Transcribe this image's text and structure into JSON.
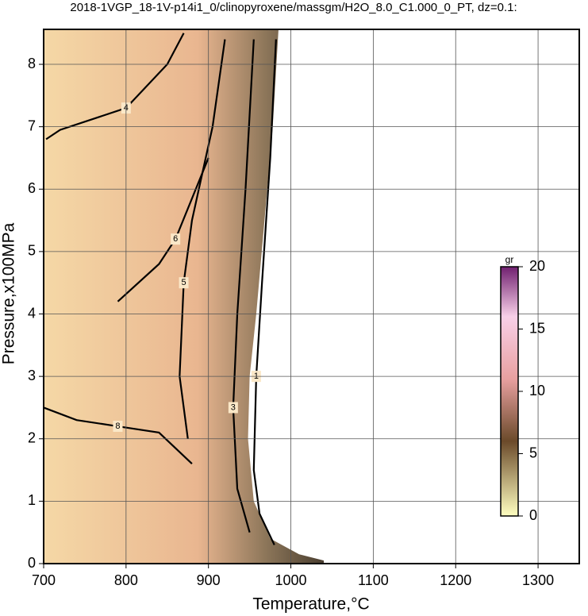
{
  "chart_data": {
    "type": "contour",
    "title": "2018-1VGP_18-1V-p14i1_0/clinopyroxene/massgm/H2O_8.0_C1.000_0_PT, dz=0.1:",
    "x_label": "Temperature,°C",
    "y_label": "Pressure,x100MPa",
    "xlim": [
      700,
      1350
    ],
    "xticks": [
      700,
      800,
      900,
      1000,
      1100,
      1200,
      1300
    ],
    "ylim": [
      0,
      8.56
    ],
    "yticks": [
      0,
      1,
      2,
      3,
      4,
      5,
      6,
      7,
      8
    ],
    "grid": true,
    "domain": {
      "x": [
        700,
        985,
        978,
        968,
        958,
        950,
        948,
        955,
        975,
        1010,
        1040,
        1040,
        700
      ],
      "y": [
        8.56,
        8.56,
        7,
        5.5,
        4,
        3,
        2,
        1,
        0.4,
        0.15,
        0.05,
        0,
        0
      ]
    },
    "contours": [
      {
        "level": 1,
        "x": [
          982,
          975,
          965,
          958,
          955,
          962,
          980
        ],
        "y": [
          8.4,
          6.5,
          4.5,
          3,
          1.5,
          0.8,
          0.3
        ]
      },
      {
        "level": 3,
        "x": [
          955,
          945,
          935,
          930,
          935,
          950
        ],
        "y": [
          8.4,
          6,
          4,
          2.5,
          1.2,
          0.5
        ]
      },
      {
        "level": 4,
        "x": [
          703,
          720,
          800,
          850,
          870
        ],
        "y": [
          6.8,
          6.95,
          7.3,
          8,
          8.5
        ]
      },
      {
        "level": 5,
        "x": [
          920,
          905,
          880,
          870,
          865,
          875
        ],
        "y": [
          8.4,
          7,
          5.5,
          4.5,
          3,
          2
        ]
      },
      {
        "level": 6,
        "x": [
          790,
          840,
          860,
          900
        ],
        "y": [
          4.2,
          4.8,
          5.2,
          6.5
        ]
      },
      {
        "level": 8,
        "x": [
          700,
          740,
          790,
          840,
          880
        ],
        "y": [
          2.5,
          2.3,
          2.2,
          2.1,
          1.6
        ]
      }
    ],
    "colorbar": {
      "label": "gr",
      "lim": [
        0,
        20
      ],
      "ticks": [
        0,
        5,
        10,
        15,
        20
      ]
    }
  }
}
